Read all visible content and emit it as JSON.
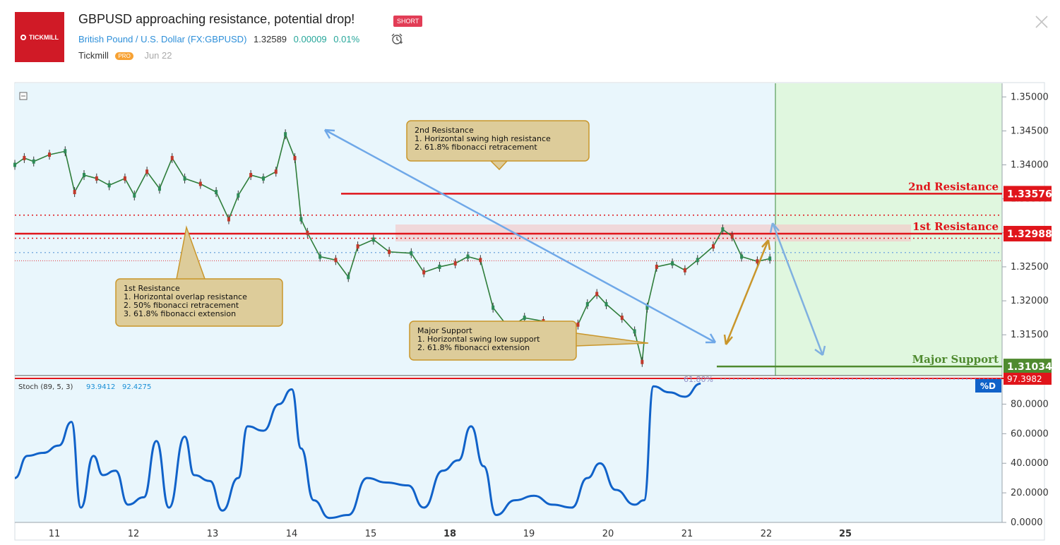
{
  "header": {
    "logo_text": "TICKMILL",
    "title": "GBPUSD approaching resistance, potential drop!",
    "badge": "SHORT",
    "symbol": "British Pound / U.S. Dollar (FX:GBPUSD)",
    "price": "1.32589",
    "change": "0.00009",
    "change_pct": "0.01%",
    "author": "Tickmill",
    "author_badge": "PRO",
    "date": "Jun 22"
  },
  "chart_data": {
    "type": "line",
    "title": "GBPUSD approaching resistance, potential drop!",
    "x_labels": [
      "11",
      "12",
      "13",
      "14",
      "15",
      "18",
      "19",
      "20",
      "21",
      "22",
      "25"
    ],
    "price_axis": {
      "ticks": [
        "1.35000",
        "1.34500",
        "1.34000",
        "1.33500",
        "1.33000",
        "1.32500",
        "1.32000",
        "1.31500"
      ],
      "ylim": [
        1.309,
        1.352
      ]
    },
    "levels": [
      {
        "name": "2nd Resistance",
        "value": 1.33576,
        "label": "1.33576",
        "color": "#e0151b"
      },
      {
        "name": "1st Resistance",
        "value": 1.32988,
        "label": "1.32988",
        "color": "#e0151b"
      },
      {
        "name": "Major Support",
        "value": 1.31034,
        "label": "1.31034",
        "color": "#4f8a2f"
      }
    ],
    "fib_label": "61.80%",
    "annotations": [
      {
        "name": "2nd-resistance-note",
        "lines": [
          "2nd Resistance",
          "1. Horizontal swing high resistance",
          "2. 61.8% fibonacci retracement"
        ]
      },
      {
        "name": "1st-resistance-note",
        "lines": [
          "1st Resistance",
          "1. Horizontal overlap resistance",
          "2. 50% fibonacci retracement",
          "3. 61.8% fibonacci extension"
        ]
      },
      {
        "name": "major-support-note",
        "lines": [
          "Major Support",
          "1. Horizontal swing low support",
          "2. 61.8% fibonacci extension"
        ]
      }
    ],
    "price_series": [
      {
        "x": 0.0,
        "y": 1.34
      },
      {
        "x": 0.15,
        "y": 1.341
      },
      {
        "x": 0.3,
        "y": 1.3405
      },
      {
        "x": 0.55,
        "y": 1.3415
      },
      {
        "x": 0.8,
        "y": 1.342
      },
      {
        "x": 0.95,
        "y": 1.336
      },
      {
        "x": 1.1,
        "y": 1.3385
      },
      {
        "x": 1.3,
        "y": 1.338
      },
      {
        "x": 1.5,
        "y": 1.337
      },
      {
        "x": 1.75,
        "y": 1.338
      },
      {
        "x": 1.9,
        "y": 1.3355
      },
      {
        "x": 2.1,
        "y": 1.339
      },
      {
        "x": 2.3,
        "y": 1.3365
      },
      {
        "x": 2.5,
        "y": 1.341
      },
      {
        "x": 2.7,
        "y": 1.338
      },
      {
        "x": 2.95,
        "y": 1.3372
      },
      {
        "x": 3.2,
        "y": 1.336
      },
      {
        "x": 3.4,
        "y": 1.332
      },
      {
        "x": 3.55,
        "y": 1.3355
      },
      {
        "x": 3.75,
        "y": 1.3385
      },
      {
        "x": 3.95,
        "y": 1.338
      },
      {
        "x": 4.15,
        "y": 1.339
      },
      {
        "x": 4.3,
        "y": 1.3445
      },
      {
        "x": 4.45,
        "y": 1.341
      },
      {
        "x": 4.55,
        "y": 1.332
      },
      {
        "x": 4.65,
        "y": 1.33
      },
      {
        "x": 4.85,
        "y": 1.3265
      },
      {
        "x": 5.1,
        "y": 1.326
      },
      {
        "x": 5.3,
        "y": 1.3235
      },
      {
        "x": 5.45,
        "y": 1.328
      },
      {
        "x": 5.7,
        "y": 1.329
      },
      {
        "x": 5.95,
        "y": 1.3272
      },
      {
        "x": 6.3,
        "y": 1.327
      },
      {
        "x": 6.5,
        "y": 1.3242
      },
      {
        "x": 6.75,
        "y": 1.325
      },
      {
        "x": 7.0,
        "y": 1.3255
      },
      {
        "x": 7.2,
        "y": 1.3265
      },
      {
        "x": 7.4,
        "y": 1.326
      },
      {
        "x": 7.6,
        "y": 1.319
      },
      {
        "x": 7.85,
        "y": 1.316
      },
      {
        "x": 8.1,
        "y": 1.3175
      },
      {
        "x": 8.4,
        "y": 1.317
      },
      {
        "x": 8.7,
        "y": 1.316
      },
      {
        "x": 8.95,
        "y": 1.3165
      },
      {
        "x": 9.1,
        "y": 1.3195
      },
      {
        "x": 9.25,
        "y": 1.321
      },
      {
        "x": 9.4,
        "y": 1.3195
      },
      {
        "x": 9.65,
        "y": 1.3175
      },
      {
        "x": 9.85,
        "y": 1.3155
      },
      {
        "x": 9.97,
        "y": 1.311
      },
      {
        "x": 10.05,
        "y": 1.319
      },
      {
        "x": 10.2,
        "y": 1.325
      },
      {
        "x": 10.45,
        "y": 1.3255
      },
      {
        "x": 10.65,
        "y": 1.3245
      },
      {
        "x": 10.85,
        "y": 1.326
      },
      {
        "x": 11.1,
        "y": 1.328
      },
      {
        "x": 11.25,
        "y": 1.3305
      },
      {
        "x": 11.4,
        "y": 1.3295
      },
      {
        "x": 11.55,
        "y": 1.3265
      },
      {
        "x": 11.8,
        "y": 1.3258
      },
      {
        "x": 12.0,
        "y": 1.3262
      }
    ],
    "indicator": {
      "name": "Stoch",
      "label": "Stoch (89, 5, 3)",
      "k_value": "93.9412",
      "d_value": "92.4275",
      "last_label": "97.3982",
      "series_tag": "%D",
      "ticks": [
        "80.0000",
        "60.0000",
        "40.0000",
        "20.0000",
        "0.0000"
      ],
      "ylim": [
        0,
        97.4
      ],
      "values": [
        {
          "x": 0.0,
          "y": 30
        },
        {
          "x": 0.2,
          "y": 45
        },
        {
          "x": 0.45,
          "y": 47
        },
        {
          "x": 0.7,
          "y": 52
        },
        {
          "x": 0.9,
          "y": 68
        },
        {
          "x": 1.05,
          "y": 10
        },
        {
          "x": 1.25,
          "y": 45
        },
        {
          "x": 1.4,
          "y": 32
        },
        {
          "x": 1.6,
          "y": 35
        },
        {
          "x": 1.8,
          "y": 12
        },
        {
          "x": 2.05,
          "y": 17
        },
        {
          "x": 2.25,
          "y": 55
        },
        {
          "x": 2.45,
          "y": 10
        },
        {
          "x": 2.7,
          "y": 58
        },
        {
          "x": 2.85,
          "y": 32
        },
        {
          "x": 3.1,
          "y": 28
        },
        {
          "x": 3.3,
          "y": 8
        },
        {
          "x": 3.55,
          "y": 30
        },
        {
          "x": 3.7,
          "y": 65
        },
        {
          "x": 3.95,
          "y": 62
        },
        {
          "x": 4.2,
          "y": 80
        },
        {
          "x": 4.4,
          "y": 90
        },
        {
          "x": 4.55,
          "y": 50
        },
        {
          "x": 4.75,
          "y": 15
        },
        {
          "x": 5.0,
          "y": 3
        },
        {
          "x": 5.3,
          "y": 5
        },
        {
          "x": 5.6,
          "y": 30
        },
        {
          "x": 5.9,
          "y": 27
        },
        {
          "x": 6.25,
          "y": 25
        },
        {
          "x": 6.5,
          "y": 10
        },
        {
          "x": 6.8,
          "y": 35
        },
        {
          "x": 7.05,
          "y": 42
        },
        {
          "x": 7.25,
          "y": 65
        },
        {
          "x": 7.45,
          "y": 38
        },
        {
          "x": 7.65,
          "y": 5
        },
        {
          "x": 7.95,
          "y": 15
        },
        {
          "x": 8.25,
          "y": 18
        },
        {
          "x": 8.55,
          "y": 12
        },
        {
          "x": 8.85,
          "y": 10
        },
        {
          "x": 9.1,
          "y": 30
        },
        {
          "x": 9.3,
          "y": 40
        },
        {
          "x": 9.55,
          "y": 22
        },
        {
          "x": 9.85,
          "y": 12
        },
        {
          "x": 10.0,
          "y": 15
        },
        {
          "x": 10.15,
          "y": 92
        },
        {
          "x": 10.4,
          "y": 88
        },
        {
          "x": 10.65,
          "y": 85
        },
        {
          "x": 10.9,
          "y": 93.9
        }
      ]
    },
    "marker_label": "%D"
  },
  "colors": {
    "bg_chart": "#e9f6fc",
    "projection_zone": "#e0f7df",
    "resistance": "#e0151b",
    "support": "#4f8a2f",
    "arrow_blue": "#6fa8e8",
    "arrow_gold": "#c9962b",
    "stoch": "#1062c9"
  }
}
